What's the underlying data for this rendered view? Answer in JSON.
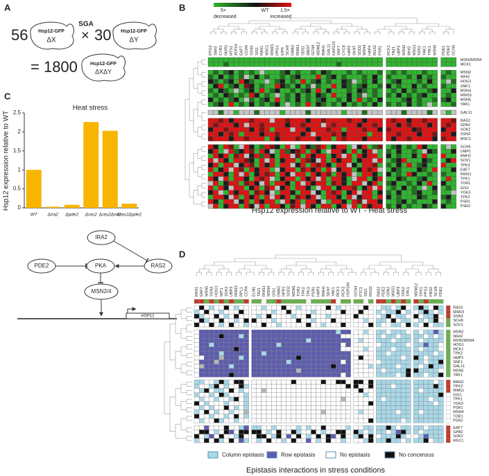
{
  "panel_labels": [
    "A",
    "B",
    "C",
    "D"
  ],
  "panel_a": {
    "n_x": "56",
    "times": "×",
    "n_y": "30",
    "method": "SGA",
    "result": "= 1800",
    "strain": "Hsp12-GFP",
    "dx": "ΔX",
    "dy": "ΔY",
    "dxdy": "ΔXΔY"
  },
  "panel_b": {
    "scale": {
      "low": "5×",
      "mid": "WT",
      "high": "1.5×",
      "low_label": "decreased",
      "high_label": "increased"
    },
    "caption": "Hsp12 expression relative to WT - Heat stress",
    "colors": {
      "g": "#2fb52f",
      "G": "#1f6e1f",
      "k": "#1c1c1c",
      "r": "#7d1414",
      "R": "#e01212",
      "x": "#c4c4c4"
    },
    "columns": [
      [
        "RTG2",
        "SWI3",
        "CYR1",
        "NGR1",
        "RTS1",
        "ATP10",
        "EAF7",
        "CCR4",
        "SSN3",
        "SIS1",
        "RAS1",
        "MSC1",
        "RIM15",
        "PPG1",
        "EIP6",
        "SCH9",
        "DMA2",
        "RIM11",
        "SDS1",
        "MED7",
        "GCN4",
        "MDM12",
        "BMH1",
        "GAL11",
        "KAP123",
        "SNF7",
        "CYC8",
        "HAP2",
        "SKN7",
        "SOD2",
        "MSN4",
        "HAP4",
        "RGS2",
        "PSR1"
      ],
      [
        "RCK1",
        "TAZ1",
        "UBP3",
        "MSN2",
        "WHI2",
        "MSG1",
        "SSK2",
        "YAK1",
        "TPK1",
        "MSN5"
      ],
      [
        "PDE1",
        "PDE2",
        "GCN5"
      ]
    ],
    "row_groups": [
      {
        "labels": [
          "MSN2MSN4",
          "MCK1"
        ],
        "cells": [
          [
            "gggggggggggggggggggggggggggggggggg",
            "gggggggggg",
            "ggg"
          ],
          [
            "gggGgggggggggggggggggggggGgggggggg",
            "gggggggggg",
            "ggg"
          ]
        ]
      },
      {
        "labels": [
          "MSN2",
          "WHI2",
          "HOG1",
          "SNF1",
          "MSN4",
          "RIM15",
          "MSN5",
          "YAK1"
        ],
        "cells": [
          [
            "gGgGkgGgGgxgggGkgGggGgkGgggGgGgggG",
            "gGgGgggGgg",
            "gGg"
          ],
          [
            "GgkgGgGxgkgGggGgGkgggRgGkgGgggGgkg",
            "GgggGgkgGg",
            "Ggg"
          ],
          [
            "kGgGkgRkGggxgGkgGgRgGkgGggkGxgGgkg",
            "gGkgggGgkg",
            "gxG"
          ],
          [
            "gkRgGkgrkgGggRkGgkgGxGggRgkGgGkggG",
            "kgGggkgGgg",
            "Ggg"
          ],
          [
            "GgkGgxgGkgRgGkggGgGkgRgkgggGgkGgGg",
            "gGgkgGggGk",
            "ggk"
          ],
          [
            "gGgkGgGgRkgGgxgGgkgGgkGgRggkgGxgGg",
            "GgkgGgGkgg",
            "gGg"
          ],
          [
            "kgGgGkgxGgGkgRgGgkgGgGkggGgkgRgGgk",
            "gggGkgGggG",
            "Gkg"
          ],
          [
            "gGkgRgGgkgGgGkgxgGgRgkGgGgkgGgGgkg",
            "GgGgkgGgxg",
            "ggG"
          ]
        ]
      },
      {
        "labels": [
          "GAL11"
        ],
        "cells": [
          [
            "xxGxxgxxxGxxxxgxxxxGxxxxxxgxxxGxxx",
            "xxxGxxxxGx",
            "xgx"
          ]
        ]
      },
      {
        "labels": [
          "RAS2",
          "GPA2",
          "SOK2",
          "SSN3",
          "MSC1"
        ],
        "cells": [
          [
            "RRrRkRRRrRRRxRRrRRRkRRrRRRRrRRkRRR",
            "RrRRkRRrRR",
            "RRr"
          ],
          [
            "RrRRRkRxRRrRRRRkRRrRRRxRrRRRRkRRrR",
            "RRkRrRRRkR",
            "RrR"
          ],
          [
            "kRRrRRRRkRrRgRRRxRRkRRRrRRgRRRrRRk",
            "rRRRRkrRRR",
            "kRR"
          ],
          [
            "RRkRrRgRRRkRRrRRRRkRxRRRrRkRRRRgRR",
            "RRrRRRkRRr",
            "RRk"
          ],
          [
            "rRRRkRRrRRRgRkRRRrRRRkRRgRrRRRkRRR",
            "RkRRrRRRRk",
            "rRR"
          ]
        ]
      },
      {
        "labels": [
          "SCH9",
          "UMP1",
          "BMH2",
          "SOV1",
          "TPK3",
          "EAF7",
          "RIM11",
          "TPK1",
          "TOR1",
          "GIS1",
          "YGK3",
          "TPK2",
          "PSR1",
          "PSR2"
        ],
        "cells": [
          [
            "RkgRrgxRkgGRrkgRxgRkGrRgkRRgxkRgGr",
            "gGkgGgRkgg",
            "gxg"
          ],
          [
            "kRgxRGkRrgRkxgRGkrRgRkgxRRkgRgkRxg",
            "GgkggGgxkG",
            "ggk"
          ],
          [
            "gRkRgrRxkRGRkgRRxrgRkRRgkRxRgRkRRg",
            "kgGggkgRgg",
            "Rgg"
          ],
          [
            "RxRkgRRrkgRxRgkRRgRrkxRgRkRRgkRRxR",
            "gGkRgggkGg",
            "gkR"
          ],
          [
            "kRgRRxkRrgRkRgRRxkRgRrRkgRRxkgRRrg",
            "GgkgRgGkgg",
            "Rgg"
          ],
          [
            "RgkRxRrgRkRRgxkRRgrRkRgRxkRRgkRrRx",
            "gkGgggkGgR",
            "ggk"
          ],
          [
            "gRRkgRxRgkRrRgRkxRRgRkRrgRkRxgRRkg",
            "kgGgRkggGg",
            "Ggg"
          ],
          [
            "RkxRgRRkgRrRxgkRRgRkRxRgRRkgxRRgkR",
            "ggkGggGkgg",
            "gRg"
          ],
          [
            "xRgkRRgrRkxRgRRkgRxRkRRgrRkgRRxkRg",
            "GkggGgkgRg",
            "kgg"
          ],
          [
            "RgRkxRRgkRgrRxkRgRRkgxRRgkRRrgkRxR",
            "gGgkgGgxgk",
            "gGg"
          ],
          [
            "kRxgRkRRgrRkxgRRkgRRxkgRrRgkRxRRgk",
            "GgkggGkggG",
            "ggx"
          ],
          [
            "gRRkxRgRkRgRxRkRgrRkRxgRRkgRxkRRgR",
            "kgGgggkGgg",
            "Gkg"
          ],
          [
            "RkgRRxkRgRkRRgxRkRgRRkxgRRkgRrxRRk",
            "ggGkgGgggk",
            "gGg"
          ],
          [
            "xRgkRRgRkxRgRRkgrRxRkgRRgkRxRgRkRR",
            "GgkgGggkGg",
            "kgg"
          ]
        ]
      }
    ]
  },
  "chart_data": {
    "type": "bar",
    "title": "Heat stress",
    "y_label": "Hsp12 expression relative to WT",
    "categories": [
      "WT",
      "Δira2",
      "Δpde2",
      "Δras2",
      "Δras2Δira2",
      "Δras2Δpde2"
    ],
    "values": [
      1.0,
      0.03,
      0.08,
      2.26,
      2.03,
      0.11
    ],
    "color": "#f7b500",
    "ylim": [
      0,
      2.5
    ],
    "yticks": [
      0,
      0.5,
      1,
      1.5,
      2,
      2.5
    ]
  },
  "pathway": {
    "ira2": "IRA2",
    "pde2": "PDE2",
    "pka": "PKA",
    "ras2": "RAS2",
    "msn": "MSN2/4",
    "gene": "HSP12"
  },
  "panel_d": {
    "caption": "Epistasis interactions in stress conditions",
    "colors": {
      "c": "#a8d8e8",
      "p": "#5c5cae",
      "w": "#ffffff",
      "k": "#111111",
      "x": "#b5b5b5"
    },
    "strip_colors": {
      "r": "#c0392b",
      "G": "#6ab04c",
      "w": "#ffffff"
    },
    "legend": [
      {
        "label": "Column epistasis",
        "color": "#a8d8e8"
      },
      {
        "label": "Row epistasis",
        "color": "#5c5cae"
      },
      {
        "label": "No epistasis",
        "color": "#ffffff"
      },
      {
        "label": "No concensus",
        "color": "#111111"
      }
    ],
    "columns": [
      [
        "RAS1",
        "EAF7",
        "MSN5",
        "SSN3",
        "HOG1",
        "MIT1",
        "SOK2",
        "UBP3",
        "RIM15",
        "RPL1",
        "CCR4"
      ],
      [
        "ELM1",
        "TAZ1",
        "RIM11",
        "MSN4",
        "GIS1",
        "DMA2",
        "NPR1",
        "SOD2",
        "MDM1",
        "TOR1",
        "TPK2",
        "TPK3",
        "PSR1",
        "HAP3",
        "BMH1",
        "SKN7",
        "YAK1",
        "RCK1",
        "RCK2",
        "HSP104"
      ],
      [
        "GCN4",
        "PTC1",
        "SIS1",
        "RGS2"
      ],
      [
        "RAS2",
        "PDE2",
        "GPA2",
        "MSG1",
        "UBP3",
        "SSK2",
        "TPK1"
      ],
      [
        "MDM12",
        "SSK1",
        "PPG1",
        "PBS2",
        "SCH9",
        "PDE1"
      ]
    ],
    "column_strip": [
      "rrGrGrGrGGr",
      "GGwGGrGGGGGwGGGGrwGG",
      "GGwG",
      "rrGrGrG",
      "rGrGGG"
    ],
    "row_groups": [
      {
        "labels": [
          "RAS2",
          "RIM15",
          "SSN3",
          "SCH9",
          "SOV1"
        ],
        "strip": "rrrGG",
        "cells": [
          [
            "wkwcwwkwcww",
            "wwcwwwkwwcwwwwwkwcww",
            "wwkw",
            "wccwckw",
            "ckcwkc"
          ],
          [
            "cwkwwcwwwkw",
            "wwwwcwwkwwwwcwwwwwkw",
            "wkww",
            "cwcckwc",
            "wckcwc"
          ],
          [
            "kcwwkwcwkww",
            "wcwkwwwwcwwkwwwcwwww",
            "kwww",
            "wckwccw",
            "kwcckw"
          ],
          [
            "wkcwwkwwcwk",
            "kwwwcwwwwkwwcwwwkwww",
            "wwcw",
            "ccwkwcc",
            "wcwckw"
          ],
          [
            "kwwkwcwkwwc",
            "wwkwwcwwwwwkwwcwwwkw",
            "wwwk",
            "cwwccwk",
            "cwkwcc"
          ]
        ]
      },
      {
        "labels": [
          "MSN2",
          "WHI2",
          "MSN2MSN4",
          "HOG1",
          "MCK1",
          "TPK2",
          "UMP1",
          "SNF1",
          "GAL11",
          "MSN5",
          "YAK1"
        ],
        "strip": "GGGGGGGGGGG",
        "cells": [
          [
            "wpppppppppp",
            "pppppppppppppppppcpp",
            "wwcw",
            "ccwcccw",
            "cwccpc"
          ],
          [
            "wppppkpppcp",
            "ppppppppppppppppppww",
            "wwww",
            "cwccwcc",
            "ccwcwc"
          ],
          [
            "wpppppppppp",
            "pppppppppppcpppppppp",
            "wcww",
            "cccwccc",
            "cwcccc"
          ],
          [
            "wppcppppppp",
            "pppppcppppppppppppwp",
            "wwww",
            "wcccccw",
            "ccpccw"
          ],
          [
            "wpppppppkpp",
            "ppppppppppppppppppww",
            "wwcw",
            "cccwccc",
            "cwcccw"
          ],
          [
            "wppppcppppp",
            "ppcppppppppppppppppp",
            "wwww",
            "ccwcccc",
            "ccccwc"
          ],
          [
            "wwpppxpppcp",
            "pppppppppkpppppppppp",
            "wkww",
            "cccccwc",
            "kcwccc"
          ],
          [
            "wpppxpppppp",
            "pppppppcppppppppppwp",
            "wwww",
            "wcccccc",
            "ccwcck"
          ],
          [
            "wxpppppcppp",
            "ppppppppppppppppkppp",
            "wwwc",
            "ccccwcc",
            "cwckcc"
          ],
          [
            "wpppppppppp",
            "pppppppppxpppppppppp",
            "wwww",
            "cwcccck",
            "kccccw"
          ],
          [
            "wppppppkppp",
            "ppppppppppppppppppwp",
            "wwww",
            "ccccwck",
            "ccwcck"
          ]
        ]
      },
      {
        "labels": [
          "BMH2",
          "TPK3",
          "RIM11",
          "GIS1",
          "TPK1",
          "YGK3",
          "PSR1",
          "MSN4",
          "TOR1",
          "PSR2"
        ],
        "strip": "rrrwwwwwww",
        "cells": [
          [
            "ccwwckcwkkw",
            "wwwwwwwwkwwwwwkwwkkw",
            "kkwk",
            "ccccccc",
            "ccccwc"
          ],
          [
            "cwwckwcwwkc",
            "wwwwwwwwwwwwwwwwwwwk",
            "kwwk",
            "cccwccc",
            "cccckc"
          ],
          [
            "wckwccwkwcw",
            "wwxwwwwwwwwwwwwwwwww",
            "wkww",
            "ccccccc",
            "cwcccc"
          ],
          [
            "cwwcwkcwwwc",
            "wwwwwwwwwwwwwwwwwwww",
            "wwcw",
            "ccccccc",
            "ccccck"
          ],
          [
            "wcwwcwwckwc",
            "wwwwwwwwwwwwwwwwwwxw",
            "wwww",
            "cwccccc",
            "cccwcc"
          ],
          [
            "kwcwwwcwwwc",
            "wwwwwwwwwwwwwwwwwwww",
            "wwwk",
            "ccccccc",
            "ccccwc"
          ],
          [
            "wcwcwwkwcwc",
            "wwwwwwwwwwwwwwwwwwww",
            "wwww",
            "ccccccc",
            "cccccc"
          ],
          [
            "cwkwcwwcwwx",
            "wwwwwwwwwwwwwwxwwwww",
            "wcww",
            "ccccwcc",
            "cwcccc"
          ],
          [
            "kwwcwwcwkwc",
            "wwwwwwwwwwwwwwwwwwww",
            "wwww",
            "ccccccc",
            "cccccc"
          ],
          [
            "wcwwkcwwcww",
            "wwwwwwwwwwwwwwwwwwww",
            "wwwk",
            "cccccwc",
            "cccccc"
          ]
        ]
      },
      {
        "labels": [
          "EAF7",
          "GPA2",
          "SOK2",
          "MSC1"
        ],
        "strip": "rrrr",
        "cells": [
          [
            "wwpwwwkwwcp",
            "ccwwcwwwwcwcwwkwwwwc",
            "wwcc",
            "cckcwcc",
            "ccwccc"
          ],
          [
            "wkkwcwkpwkk",
            "kkwcwkwwkcwwkwcwwkkw",
            "kcwc",
            "ccwcpkc",
            "cwcccc"
          ],
          [
            "kwcpwkwwckw",
            "wkkwckwpwkwcwkwkpwkw",
            "ckwk",
            "wccckcw",
            "wcpccc"
          ],
          [
            "cwkwkcwkwpc",
            "wcwkwwcwkwwpwcwkwwcw",
            "wwck",
            "cckccwc",
            "cckwcc"
          ]
        ]
      }
    ]
  }
}
